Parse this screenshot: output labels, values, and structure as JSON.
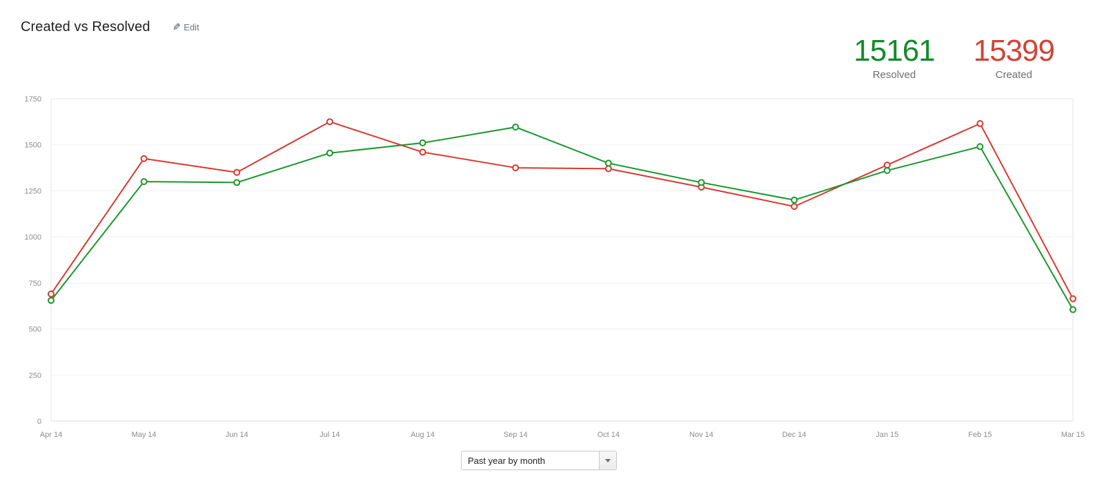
{
  "header": {
    "title": "Created vs Resolved",
    "edit_label": "Edit"
  },
  "totals": {
    "resolved": {
      "value": "15161",
      "label": "Resolved",
      "color": "#14892c"
    },
    "created": {
      "value": "15399",
      "label": "Created",
      "color": "#d04437"
    }
  },
  "controls": {
    "period_select": {
      "value": "Past year by month"
    }
  },
  "chart_data": {
    "type": "line",
    "categories": [
      "Apr 14",
      "May 14",
      "Jun 14",
      "Jul 14",
      "Aug 14",
      "Sep 14",
      "Oct 14",
      "Nov 14",
      "Dec 14",
      "Jan 15",
      "Feb 15",
      "Mar 15"
    ],
    "series": [
      {
        "name": "Created",
        "color": "#d8382e",
        "values": [
          690,
          1425,
          1350,
          1625,
          1460,
          1375,
          1370,
          1270,
          1165,
          1390,
          1615,
          664
        ]
      },
      {
        "name": "Resolved",
        "color": "#18962b",
        "values": [
          655,
          1300,
          1295,
          1455,
          1510,
          1596,
          1400,
          1295,
          1200,
          1360,
          1490,
          605
        ]
      }
    ],
    "ylim": [
      0,
      1750
    ],
    "yticks": [
      0,
      250,
      500,
      750,
      1000,
      1250,
      1500,
      1750
    ],
    "grid": "horizontal",
    "legend": "none",
    "marker": "open-circle"
  }
}
